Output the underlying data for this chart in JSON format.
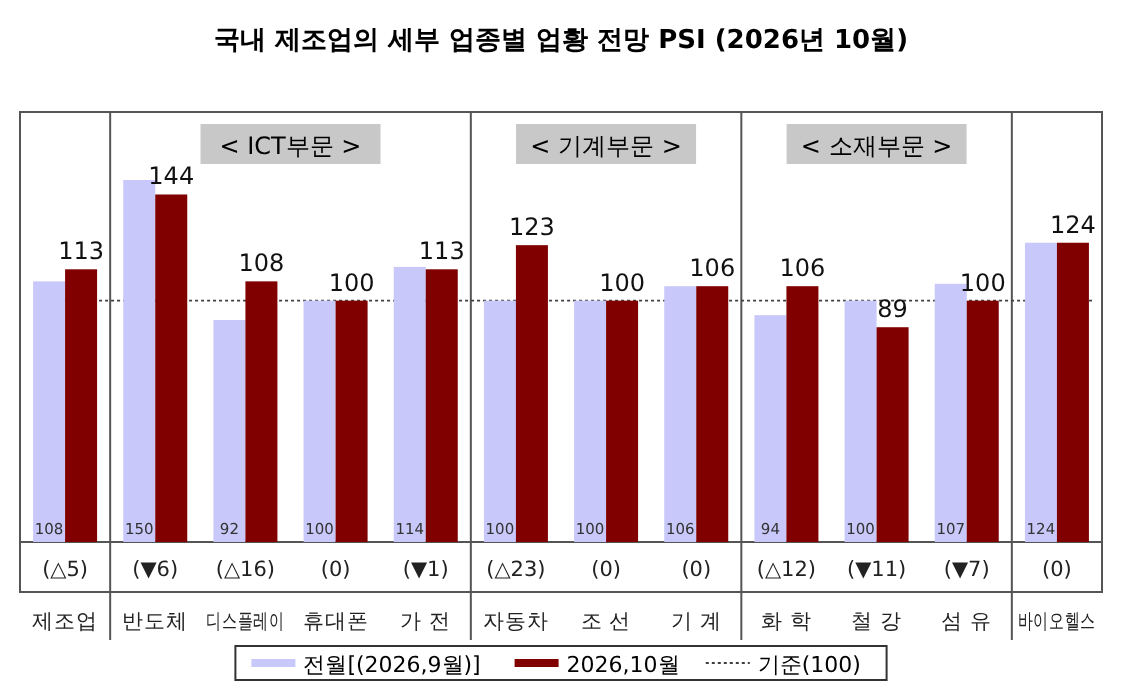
{
  "chart_data": {
    "type": "bar",
    "title": "국내 제조업의 세부 업종별 업황 전망 PSI (2026년 10월)",
    "categories": [
      "제조업",
      "반도체",
      "디스플레이",
      "휴대폰",
      "가 전",
      "자동차",
      "조 선",
      "기 계",
      "화 학",
      "철 강",
      "섬 유",
      "바이오헬스"
    ],
    "series": [
      {
        "name": "전월[(2026,9월)]",
        "color": "#c8c8fa",
        "values": [
          108,
          150,
          92,
          100,
          114,
          100,
          100,
          106,
          94,
          100,
          107,
          124
        ]
      },
      {
        "name": "2026,10월",
        "color": "#800000",
        "values": [
          113,
          144,
          108,
          100,
          113,
          123,
          100,
          106,
          106,
          89,
          100,
          124
        ]
      }
    ],
    "data_labels": true,
    "legend": "bottom",
    "ref_lines": [
      {
        "axis": "y",
        "value": 100,
        "label": "기준(100)",
        "line_style": "dotted",
        "color": "#404040"
      }
    ],
    "annotations": [
      "(△5)",
      "(▼6)",
      "(△16)",
      "(0)",
      "(▼1)",
      "(△23)",
      "(0)",
      "(0)",
      "(△12)",
      "(▼11)",
      "(▼7)",
      "(0)",
      "< ICT부문 >",
      "< 기계부문 >",
      "< 소재부문 >"
    ]
  }
}
